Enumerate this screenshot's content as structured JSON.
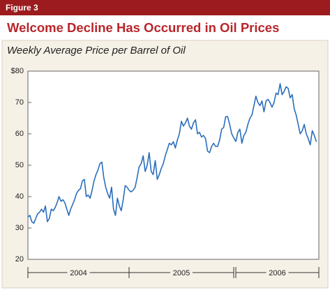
{
  "figure_label": "Figure 3",
  "chart_data": {
    "type": "line",
    "title": "Welcome Decline Has Occurred in Oil Prices",
    "subtitle": "Weekly Average Price per Barrel of Oil",
    "color": "#2a6ebb",
    "ylim": [
      20,
      80
    ],
    "yticks": [
      20,
      30,
      40,
      50,
      60,
      {
        "value": 80,
        "label": "$80"
      },
      70
    ],
    "periods": [
      {
        "label": "2004",
        "values": [
          33.5,
          34,
          32,
          31.5,
          33,
          34.5,
          35,
          36,
          35,
          37,
          32,
          33,
          36,
          35.5,
          36.5,
          38,
          40,
          38.5,
          39,
          38,
          36,
          34,
          36,
          37.5,
          39,
          41,
          42,
          42.5,
          45,
          45.5,
          40,
          40.5,
          39.5,
          42,
          45,
          47,
          48.5,
          50.5,
          51,
          46,
          43,
          41,
          39.5,
          43,
          36,
          34,
          39.5,
          37,
          35.5,
          39,
          43.5,
          43
        ]
      },
      {
        "label": "2005",
        "values": [
          42,
          41.5,
          42,
          43,
          46,
          49.5,
          50.5,
          53,
          48,
          50,
          54,
          48,
          47,
          51.5,
          45.5,
          47,
          49,
          50.5,
          53,
          55,
          57,
          56.5,
          57.5,
          55.5,
          58,
          60,
          64,
          62.5,
          63.5,
          65,
          62.5,
          61.5,
          63.5,
          64.5,
          60,
          60.5,
          59,
          59.5,
          58.5,
          54.5,
          54,
          56,
          57,
          56,
          56,
          58,
          61.5,
          62,
          65.5,
          65.5,
          63,
          60
        ]
      },
      {
        "label": "2006",
        "values": [
          57.5,
          60.5,
          61.5,
          57,
          59.5,
          60.5,
          63,
          65,
          66,
          69,
          72,
          70,
          69,
          70.5,
          67,
          70.5,
          71,
          70,
          68.5,
          70,
          73,
          72.5,
          76,
          72.5,
          73.5,
          75,
          74.5,
          71.5,
          72.5,
          68,
          66,
          63,
          60,
          61,
          63,
          60,
          58.5,
          56.5,
          61,
          59.5,
          57.5
        ]
      }
    ]
  }
}
